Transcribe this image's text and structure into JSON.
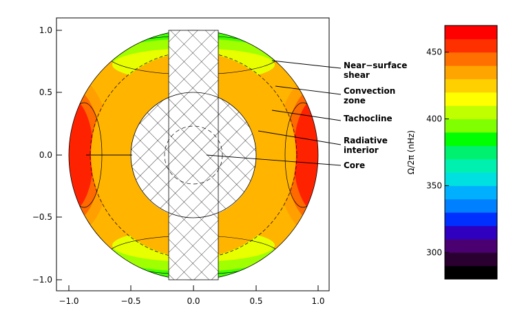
{
  "plot": {
    "x_ticks": [
      "−1.0",
      "−0.5",
      "0.0",
      "0.5",
      "1.0"
    ],
    "y_ticks": [
      "1.0",
      "0.5",
      "0.0",
      "−0.5",
      "−1.0"
    ]
  },
  "labels": {
    "near_surface_1": "Near−surface",
    "near_surface_2": "shear",
    "convection_1": "Convection",
    "convection_2": "zone",
    "tachocline": "Tachocline",
    "radiative_1": "Radiative",
    "radiative_2": "interior",
    "core": "Core"
  },
  "colorbar": {
    "title": "Ω/2π (nHz)",
    "ticks": [
      "450",
      "400",
      "350",
      "300"
    ],
    "tick_values": [
      450,
      400,
      350,
      300
    ],
    "range": [
      280,
      470
    ],
    "colors": [
      "#000000",
      "#2a0030",
      "#4a0070",
      "#3000c0",
      "#0030ff",
      "#0080ff",
      "#00b0ff",
      "#00e0e0",
      "#00f0b0",
      "#00f070",
      "#00ff00",
      "#80ff00",
      "#c0ff00",
      "#ffff00",
      "#ffd000",
      "#ffa500",
      "#ff7000",
      "#ff3000",
      "#ff0000"
    ]
  },
  "regions": {
    "tachocline_color": "#ffb400",
    "equator_color": "#ff2200",
    "pole_color": "#00ffff"
  }
}
